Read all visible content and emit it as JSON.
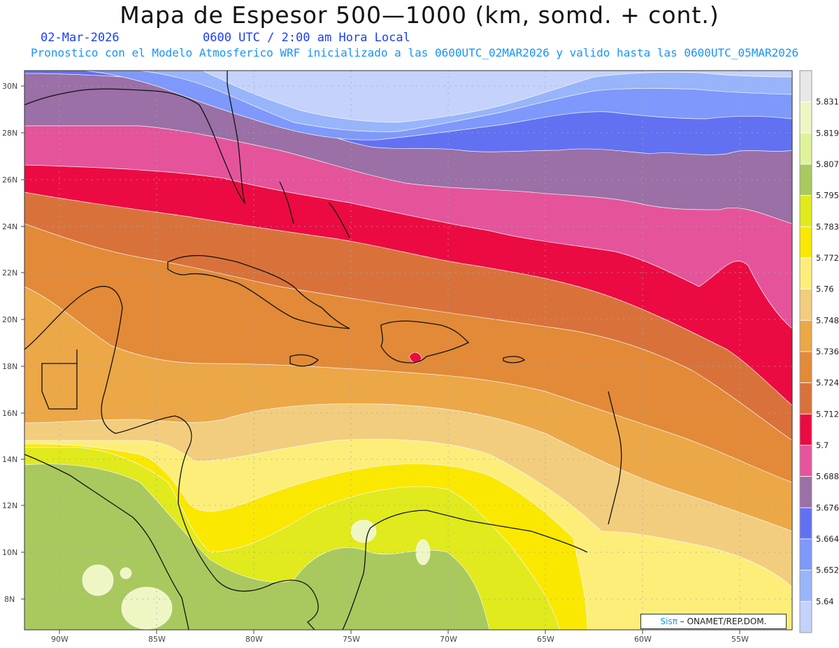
{
  "header": {
    "title": "Mapa de Espesor 500—1000 (km, somd. + cont.)",
    "date": "02-Mar-2026",
    "time": "0600 UTC / 2:00 am Hora Local",
    "forecast_note": "Pronostico con el Modelo Atmosferico WRF inicializado a las 0600UTC_02MAR2026 y valido hasta las  0600UTC_05MAR2026"
  },
  "axes": {
    "lat_labels": [
      "30N",
      "28N",
      "26N",
      "24N",
      "22N",
      "20N",
      "18N",
      "16N",
      "14N",
      "12N",
      "10N",
      "8N"
    ],
    "lon_labels": [
      "90W",
      "85W",
      "80W",
      "75W",
      "70W",
      "65W",
      "60W",
      "55W"
    ]
  },
  "colorbar": {
    "levels": [
      "5.831",
      "5.819",
      "5.807",
      "5.795",
      "5.783",
      "5.772",
      "5.76",
      "5.748",
      "5.736",
      "5.724",
      "5.712",
      "5.7",
      "5.688",
      "5.676",
      "5.664",
      "5.652",
      "5.64"
    ],
    "colors": [
      "#e8e8e8",
      "#eef7c4",
      "#dff29a",
      "#a9c95e",
      "#e0ea1c",
      "#fbe800",
      "#fdee7a",
      "#f2cd7d",
      "#eca747",
      "#e28a37",
      "#d9723a",
      "#ec0a42",
      "#e5549b",
      "#9a70a6",
      "#6271f2",
      "#7e99fb",
      "#98b5fb",
      "#c4d2fc"
    ]
  },
  "credit": {
    "brand": "Sisπ",
    "text": " – ONAMET/REP.DOM."
  }
}
